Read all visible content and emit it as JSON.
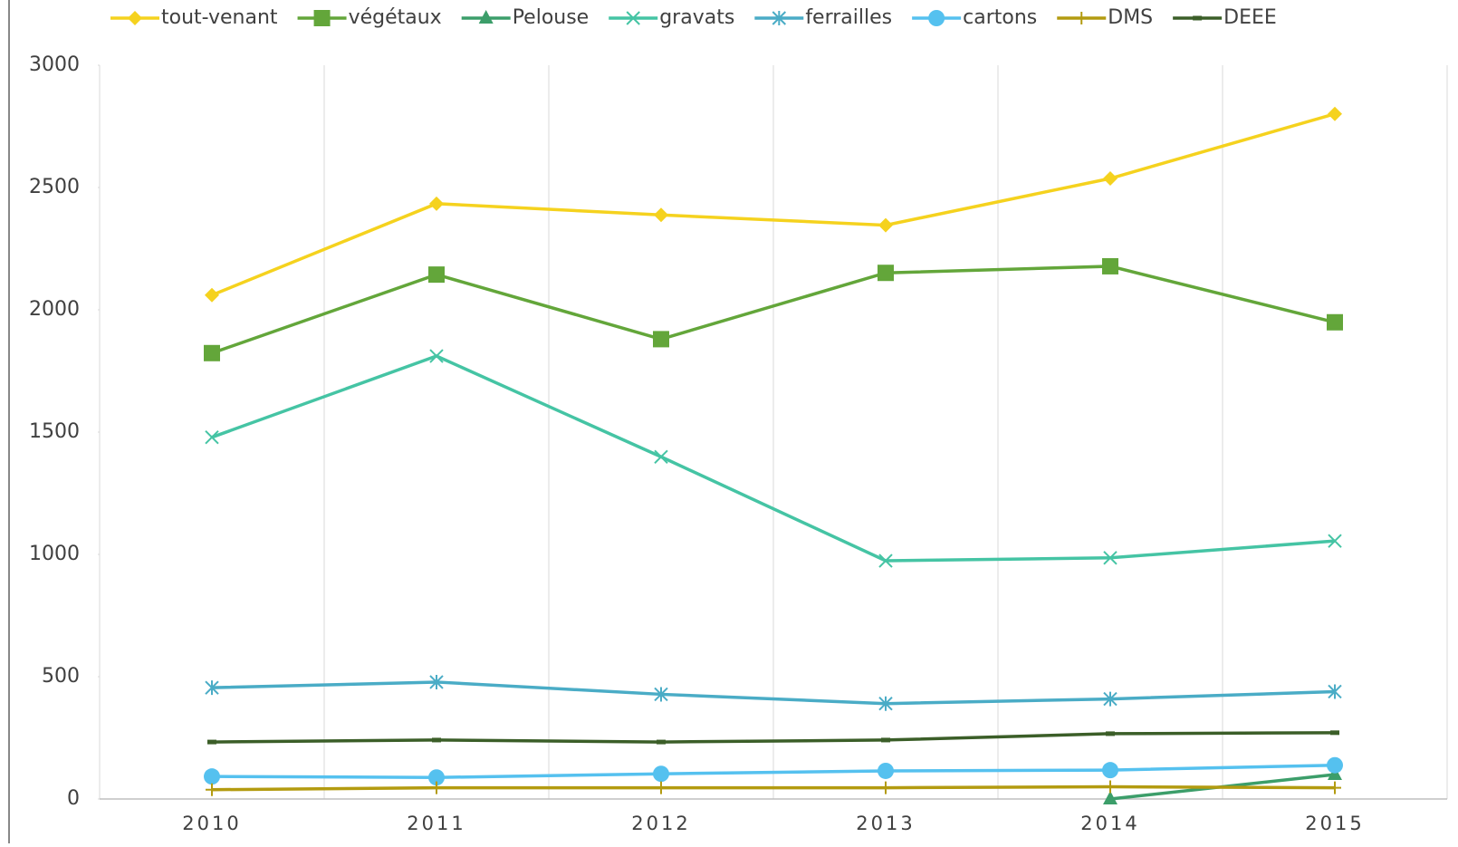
{
  "chart_data": {
    "type": "line",
    "categories": [
      "2010",
      "2011",
      "2012",
      "2013",
      "2014",
      "2015"
    ],
    "series": [
      {
        "name": "tout-venant",
        "color": "#f5d21e",
        "marker": "diamond",
        "values": [
          2060,
          2434,
          2388,
          2346,
          2537,
          2801
        ]
      },
      {
        "name": "végétaux",
        "color": "#63a63a",
        "marker": "square",
        "values": [
          1823,
          2144,
          1880,
          2151,
          2178,
          1949
        ]
      },
      {
        "name": "Pelouse",
        "color": "#3c9e6a",
        "marker": "triangle",
        "values": [
          null,
          null,
          null,
          null,
          0,
          100
        ]
      },
      {
        "name": "gravats",
        "color": "#45c4a4",
        "marker": "x",
        "values": [
          1479,
          1811,
          1399,
          974,
          986,
          1055
        ]
      },
      {
        "name": "ferrailles",
        "color": "#4aacc6",
        "marker": "asterisk",
        "values": [
          455,
          478,
          428,
          390,
          409,
          439
        ]
      },
      {
        "name": "cartons",
        "color": "#55c1ef",
        "marker": "circle",
        "values": [
          92,
          88,
          103,
          115,
          118,
          138
        ]
      },
      {
        "name": "DMS",
        "color": "#b39b10",
        "marker": "plus",
        "values": [
          38,
          46,
          46,
          46,
          50,
          46
        ]
      },
      {
        "name": "DEEE",
        "color": "#3b5e28",
        "marker": "dash",
        "values": [
          233,
          241,
          233,
          241,
          267,
          271
        ]
      }
    ],
    "ylim": [
      0,
      3000
    ],
    "yticks": [
      0,
      500,
      1000,
      1500,
      2000,
      2500,
      3000
    ],
    "grid": true,
    "legend": "top"
  }
}
